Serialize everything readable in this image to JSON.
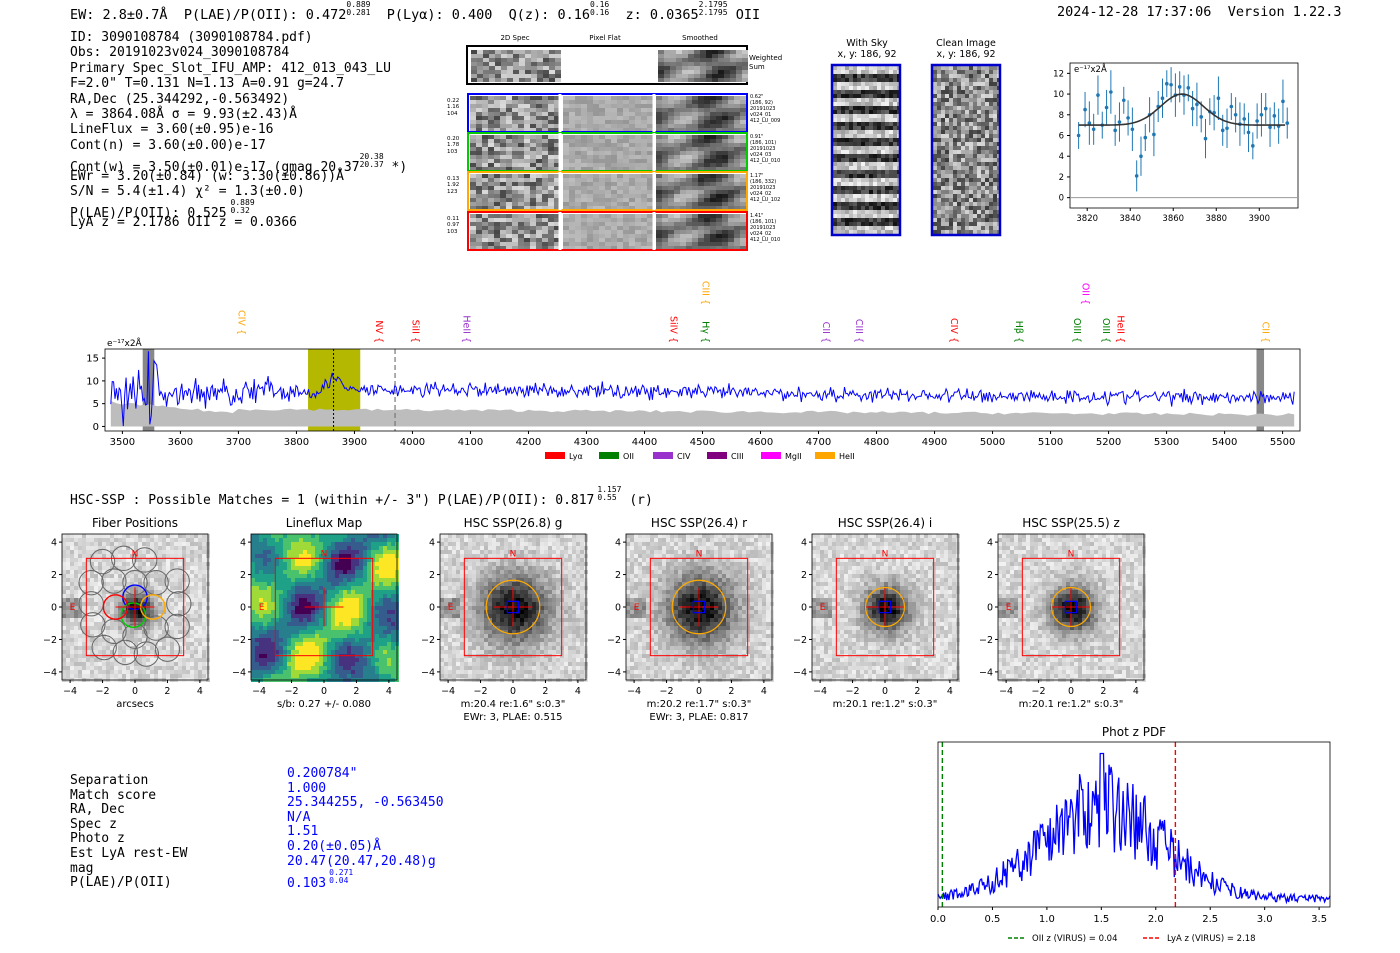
{
  "header": {
    "ew": "EW: 2.8±0.7Å",
    "plae_label": "P(LAE)/P(OII): 0.472",
    "plae_hi": "0.889",
    "plae_lo": "0.281",
    "plya": "P(Lyα): 0.400",
    "qz": "Q(z): 0.16",
    "qz_hi": "0.16",
    "qz_lo": "0.16",
    "z": "z: 0.0365",
    "z_hi": "2.1795",
    "z_lo": "2.1795",
    "z_line": "OII",
    "timestamp": "2024-12-28 17:37:06",
    "version": "Version 1.22.3"
  },
  "info": [
    "ID: 3090108784 (3090108784.pdf)",
    "Obs: 20191023v024_3090108784",
    "Primary Spec_Slot_IFU_AMP: 412_013_043_LU",
    "F=2.0\"  T=0.131  N=1.13  A=0.91  g=24.7",
    "RA,Dec (25.344292,-0.563492)",
    "λ = 3864.08Å  σ = 9.93(±2.43)Å",
    "LineFlux = 3.60(±0.95)e-16",
    "Cont(n) = 3.60(±0.00)e-17",
    "Cont(w) = 3.50(±0.01)e-17 (gmag 20.37",
    "EWr = 3.20(±0.84) (w: 3.30(±0.86))Å",
    "S/N = 5.4(±1.4)  χ² = 1.3(±0.0)",
    "P(LAE)/P(OII): 0.525",
    "LyA z = 2.1786  OII z = 0.0366"
  ],
  "info_extra": {
    "gmag_hi": "20.38",
    "gmag_lo": "20.37",
    "gmag_close": "*)",
    "plae_hi": "0.889",
    "plae_lo": "0.32"
  },
  "cutouts": {
    "col_titles": [
      "2D Spec",
      "Pixel Flat",
      "Smoothed"
    ],
    "weighted_sum": "Weighted Sum",
    "rows": [
      {
        "left": [
          "0.22",
          "1.16",
          "104"
        ],
        "right": [
          "0.62\"",
          "(186, 92)",
          "20191023",
          "v024_01",
          "412_LU_009"
        ],
        "color": "#0000ff"
      },
      {
        "left": [
          "0.20",
          "1.78",
          "103"
        ],
        "right": [
          "0.91\"",
          "(186, 101)",
          "20191023",
          "v024_03",
          "412_LU_010"
        ],
        "color": "#00cc00"
      },
      {
        "left": [
          "0.13",
          "1.92",
          "123"
        ],
        "right": [
          "1.17\"",
          "(186, 332)",
          "20191023",
          "v024_02",
          "412_LU_102"
        ],
        "color": "#ffaa00"
      },
      {
        "left": [
          "0.11",
          "0.97",
          "103"
        ],
        "right": [
          "1.41\"",
          "(186, 101)",
          "20191023",
          "v024_02",
          "412_LU_010"
        ],
        "color": "#ff0000"
      }
    ],
    "with_sky": [
      "With Sky",
      "x, y: 186, 92"
    ],
    "clean_image": [
      "Clean Image",
      "x, y: 186, 92"
    ]
  },
  "fit_plot": {
    "ylabel": "e⁻¹⁷x2Å",
    "xticks": [
      "3820",
      "3840",
      "3860",
      "3880",
      "3900"
    ],
    "yticks": [
      "0",
      "2",
      "4",
      "6",
      "8",
      "10",
      "12"
    ],
    "chart_data": {
      "type": "scatter",
      "x": [
        3816,
        3819,
        3821,
        3823,
        3825,
        3827,
        3829,
        3831,
        3833,
        3835,
        3837,
        3839,
        3841,
        3843,
        3845,
        3847,
        3849,
        3851,
        3853,
        3855,
        3857,
        3859,
        3861,
        3863,
        3865,
        3867,
        3869,
        3871,
        3873,
        3875,
        3877,
        3879,
        3881,
        3883,
        3885,
        3887,
        3889,
        3891,
        3893,
        3895,
        3897,
        3899,
        3901,
        3903,
        3905,
        3907,
        3909,
        3911,
        3913
      ],
      "y": [
        6.0,
        8.5,
        7.2,
        6.6,
        9.9,
        7.0,
        8.7,
        10.2,
        6.5,
        7.3,
        9.4,
        7.7,
        6.6,
        2.1,
        4.0,
        5.8,
        8.0,
        6.1,
        8.8,
        9.6,
        11.0,
        10.9,
        9.9,
        10.7,
        9.9,
        10.6,
        8.6,
        9.0,
        7.8,
        5.7,
        8.3,
        8.2,
        9.6,
        6.5,
        6.7,
        8.8,
        8.0,
        7.1,
        7.6,
        6.3,
        5.0,
        7.4,
        8.0,
        8.6,
        6.8,
        7.9,
        6.9,
        9.3,
        7.2
      ],
      "fit": {
        "center": 3864.08,
        "sigma": 9.93,
        "continuum": 7.0,
        "peak": 10.0
      },
      "xlim": [
        3812,
        3918
      ],
      "ylim": [
        -1,
        13
      ]
    }
  },
  "spectrum": {
    "ylabel": "e⁻¹⁷x2Å",
    "xticks": [
      "3500",
      "3600",
      "3700",
      "3800",
      "3900",
      "4000",
      "4100",
      "4200",
      "4300",
      "4400",
      "4500",
      "4600",
      "4700",
      "4800",
      "4900",
      "5000",
      "5100",
      "5200",
      "5300",
      "5400",
      "5500"
    ],
    "yticks": [
      "0",
      "5",
      "10",
      "15"
    ],
    "lines": [
      {
        "name": "CIV",
        "x": 3700,
        "color": "#ffa500",
        "row": 1
      },
      {
        "name": "NV",
        "x": 3937,
        "color": "#ff0000",
        "row": 0
      },
      {
        "name": "SiII",
        "x": 4000,
        "color": "#ff0000",
        "row": 0
      },
      {
        "name": "HeII",
        "x": 4088,
        "color": "#9932cc",
        "row": 0
      },
      {
        "name": "SiIV",
        "x": 4445,
        "color": "#ff0000",
        "row": 0
      },
      {
        "name": "CIII",
        "x": 4500,
        "color": "#ffa500",
        "row": 2
      },
      {
        "name": "Hγ",
        "x": 4500,
        "color": "#008000",
        "row": 0
      },
      {
        "name": "CII",
        "x": 4708,
        "color": "#9932cc",
        "row": 0
      },
      {
        "name": "CIII",
        "x": 4765,
        "color": "#9932cc",
        "row": 0
      },
      {
        "name": "CIV",
        "x": 4928,
        "color": "#ff0000",
        "row": 0
      },
      {
        "name": "Hβ",
        "x": 5040,
        "color": "#008000",
        "row": 0
      },
      {
        "name": "OII",
        "x": 5155,
        "color": "#ff00ff",
        "row": 2
      },
      {
        "name": "OIII",
        "x": 5140,
        "color": "#008000",
        "row": 0
      },
      {
        "name": "OIII",
        "x": 5190,
        "color": "#008000",
        "row": 0
      },
      {
        "name": "HeII",
        "x": 5215,
        "color": "#ff0000",
        "row": 0
      },
      {
        "name": "CII",
        "x": 5465,
        "color": "#ffa500",
        "row": 0
      }
    ],
    "legend": [
      {
        "label": "Lyα",
        "color": "#ff0000"
      },
      {
        "label": "OII",
        "color": "#008000"
      },
      {
        "label": "CIV",
        "color": "#9932cc"
      },
      {
        "label": "CIII",
        "color": "#800080"
      },
      {
        "label": "MgII",
        "color": "#ff00ff"
      },
      {
        "label": "HeII",
        "color": "#ffa500"
      }
    ],
    "chart_data": {
      "type": "line",
      "xlim": [
        3470,
        5530
      ],
      "ylim": [
        -1,
        17
      ],
      "highlight": [
        3820,
        3910
      ],
      "line_center": 3864,
      "dashed_line": 3970,
      "masked_regions": [
        [
          3535,
          3555
        ],
        [
          5455,
          5468
        ]
      ],
      "noise_level": 3.5,
      "continuum": 6.5
    }
  },
  "hsc": {
    "title": "HSC-SSP : Possible Matches = 1 (within +/- 3\")  P(LAE)/P(OII): 0.817",
    "title_hi": "1.157",
    "title_lo": "0.55",
    "title_tail": "(r)",
    "panels": [
      {
        "title": "Fiber Positions",
        "caption1": "arcsecs",
        "caption2": ""
      },
      {
        "title": "Lineflux Map",
        "caption1": "s/b: 0.27 +/- 0.080",
        "caption2": ""
      },
      {
        "title": "HSC SSP(26.8) g",
        "caption1": "m:20.4  re:1.6\"  s:0.3\"",
        "caption2": "EWr: 3, PLAE: 0.515"
      },
      {
        "title": "HSC SSP(26.4) r",
        "caption1": "m:20.2  re:1.7\"  s:0.3\"",
        "caption2": "EWr: 3, PLAE: 0.817"
      },
      {
        "title": "HSC SSP(26.4) i",
        "caption1": "m:20.1  re:1.2\"  s:0.3\"",
        "caption2": ""
      },
      {
        "title": "HSC SSP(25.5) z",
        "caption1": "m:20.1  re:1.2\"  s:0.3\"",
        "caption2": ""
      }
    ],
    "axis_ticks": [
      "−4",
      "−2",
      "0",
      "2",
      "4"
    ],
    "compass_n": "N",
    "compass_e": "E"
  },
  "summary": {
    "labels": [
      "Separation",
      "Match score",
      "RA, Dec",
      "Spec z",
      "Photo z",
      "Est LyA rest-EW",
      "mag",
      "P(LAE)/P(OII)"
    ],
    "values": [
      "0.200784\"",
      "1.000",
      "25.344255, -0.563450",
      "N/A",
      "1.51",
      "0.20(±0.05)Å",
      "20.47(20.47,20.48)g",
      "0.103"
    ],
    "plae_hi": "0.271",
    "plae_lo": "0.04"
  },
  "photz": {
    "title": "Phot z PDF",
    "xticks": [
      "0.0",
      "0.5",
      "1.0",
      "1.5",
      "2.0",
      "2.5",
      "3.0",
      "3.5"
    ],
    "legend": [
      {
        "label": "OII z (VIRUS) = 0.04",
        "color": "#008000"
      },
      {
        "label": "LyA z (VIRUS) = 2.18",
        "color": "#ff0000"
      }
    ],
    "chart_data": {
      "type": "line",
      "xlim": [
        0,
        3.6
      ],
      "oii_z": 0.04,
      "lya_z": 2.18,
      "peak_z": 1.5
    }
  }
}
